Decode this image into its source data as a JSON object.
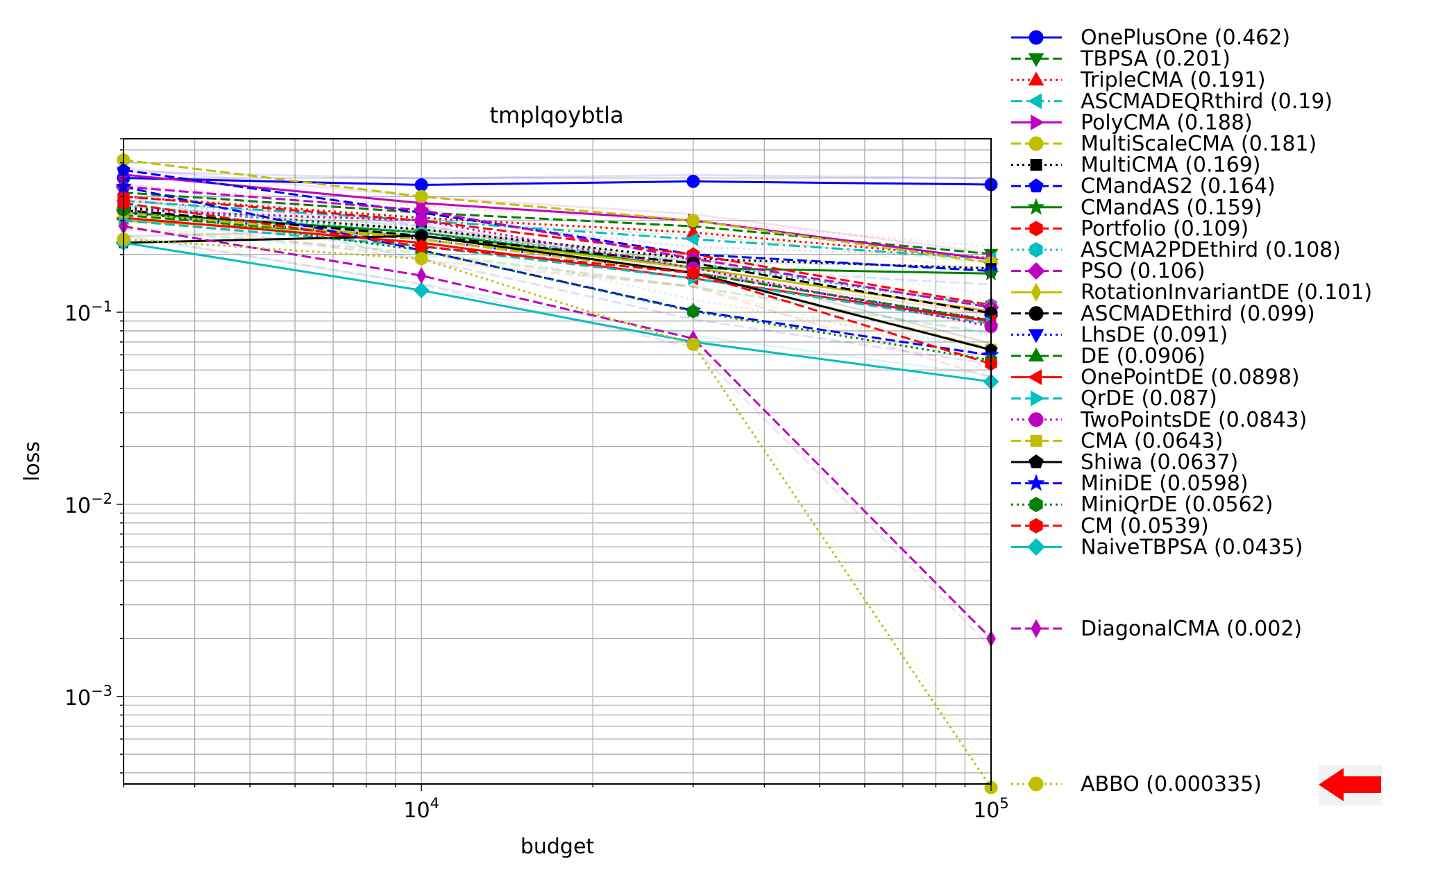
{
  "chart_data": {
    "type": "line",
    "title": "tmplqoybtla",
    "xlabel": "budget",
    "ylabel": "loss",
    "xscale": "log",
    "yscale": "log",
    "xlim": [
      3000,
      100000
    ],
    "ylim": [
      0.00035,
      0.8
    ],
    "x_ticks": [
      {
        "value": 10000,
        "base": "10",
        "exp": "4"
      },
      {
        "value": 100000,
        "base": "10",
        "exp": "5"
      }
    ],
    "y_ticks": [
      {
        "value": 0.1,
        "base": "10",
        "exp": "−1"
      },
      {
        "value": 0.01,
        "base": "10",
        "exp": "−2"
      },
      {
        "value": 0.001,
        "base": "10",
        "exp": "−3"
      }
    ],
    "grid": true,
    "legend_position": "right, outside plot",
    "x": [
      3000,
      10000,
      30000,
      100000
    ],
    "series": [
      {
        "name": "OnePlusOne (0.462)",
        "color": "#0000ff",
        "dash": "solid",
        "marker": "circle",
        "values": [
          0.5,
          0.46,
          0.48,
          0.462
        ]
      },
      {
        "name": "TBPSA (0.201)",
        "color": "#008000",
        "dash": "dashed",
        "marker": "triangle-down",
        "values": [
          0.42,
          0.33,
          0.28,
          0.201
        ]
      },
      {
        "name": "TripleCMA (0.191)",
        "color": "#ff0000",
        "dash": "dotted",
        "marker": "triangle-up",
        "values": [
          0.4,
          0.31,
          0.26,
          0.191
        ]
      },
      {
        "name": "ASCMADEQRthird (0.19)",
        "color": "#00bfbf",
        "dash": "dashdot",
        "marker": "triangle-left",
        "values": [
          0.38,
          0.3,
          0.24,
          0.19
        ]
      },
      {
        "name": "PolyCMA (0.188)",
        "color": "#bf00bf",
        "dash": "solid",
        "marker": "triangle-right",
        "values": [
          0.52,
          0.37,
          0.3,
          0.188
        ]
      },
      {
        "name": "MultiScaleCMA (0.181)",
        "color": "#bfbf00",
        "dash": "dashed",
        "marker": "circle",
        "values": [
          0.62,
          0.4,
          0.3,
          0.181
        ]
      },
      {
        "name": "MultiCMA (0.169)",
        "color": "#000000",
        "dash": "dotted",
        "marker": "square",
        "values": [
          0.35,
          0.27,
          0.19,
          0.169
        ]
      },
      {
        "name": "CMandAS2 (0.164)",
        "color": "#0000ff",
        "dash": "dashed",
        "marker": "pentagon",
        "values": [
          0.55,
          0.33,
          0.2,
          0.164
        ]
      },
      {
        "name": "CMandAS (0.159)",
        "color": "#008000",
        "dash": "solid",
        "marker": "star",
        "values": [
          0.33,
          0.26,
          0.17,
          0.159
        ]
      },
      {
        "name": "Portfolio (0.109)",
        "color": "#ff0000",
        "dash": "dashed",
        "marker": "hexagon",
        "values": [
          0.4,
          0.3,
          0.2,
          0.109
        ]
      },
      {
        "name": "ASCMA2PDEthird (0.108)",
        "color": "#00bfbf",
        "dash": "dotted",
        "marker": "hexagon",
        "values": [
          0.36,
          0.26,
          0.18,
          0.108
        ]
      },
      {
        "name": "PSO (0.106)",
        "color": "#bf00bf",
        "dash": "dashed",
        "marker": "diamond",
        "values": [
          0.45,
          0.34,
          0.19,
          0.106
        ]
      },
      {
        "name": "RotationInvariantDE (0.101)",
        "color": "#bfbf00",
        "dash": "solid",
        "marker": "thin-diamond",
        "values": [
          0.3,
          0.25,
          0.17,
          0.101
        ]
      },
      {
        "name": "ASCMADEthird (0.099)",
        "color": "#000000",
        "dash": "dashed",
        "marker": "circle",
        "values": [
          0.34,
          0.25,
          0.18,
          0.099
        ]
      },
      {
        "name": "LhsDE (0.091)",
        "color": "#0000ff",
        "dash": "dotted",
        "marker": "triangle-down",
        "values": [
          0.33,
          0.24,
          0.16,
          0.091
        ]
      },
      {
        "name": "DE (0.0906)",
        "color": "#008000",
        "dash": "dashed",
        "marker": "triangle-up",
        "values": [
          0.32,
          0.24,
          0.16,
          0.0906
        ]
      },
      {
        "name": "OnePointDE (0.0898)",
        "color": "#ff0000",
        "dash": "solid",
        "marker": "triangle-left",
        "values": [
          0.31,
          0.23,
          0.15,
          0.0898
        ]
      },
      {
        "name": "QrDE (0.087)",
        "color": "#00bfbf",
        "dash": "dashed",
        "marker": "triangle-right",
        "values": [
          0.3,
          0.22,
          0.15,
          0.087
        ]
      },
      {
        "name": "TwoPointsDE (0.0843)",
        "color": "#bf00bf",
        "dash": "dotted",
        "marker": "circle",
        "values": [
          0.34,
          0.3,
          0.17,
          0.0843
        ]
      },
      {
        "name": "CMA (0.0643)",
        "color": "#bfbf00",
        "dash": "dashed",
        "marker": "square",
        "values": [
          0.33,
          0.24,
          0.16,
          0.0643
        ]
      },
      {
        "name": "Shiwa (0.0637)",
        "color": "#000000",
        "dash": "solid",
        "marker": "pentagon",
        "values": [
          0.23,
          0.25,
          0.16,
          0.0637
        ]
      },
      {
        "name": "MiniDE (0.0598)",
        "color": "#0000ff",
        "dash": "dashed",
        "marker": "star",
        "values": [
          0.45,
          0.21,
          0.102,
          0.0598
        ]
      },
      {
        "name": "MiniQrDE (0.0562)",
        "color": "#008000",
        "dash": "dotted",
        "marker": "hexagon",
        "values": [
          0.34,
          0.21,
          0.101,
          0.0562
        ]
      },
      {
        "name": "CM (0.0539)",
        "color": "#ff0000",
        "dash": "dashed",
        "marker": "hexagon",
        "values": [
          0.37,
          0.22,
          0.16,
          0.0539
        ]
      },
      {
        "name": "NaiveTBPSA (0.0435)",
        "color": "#00bfbf",
        "dash": "solid",
        "marker": "diamond",
        "values": [
          0.23,
          0.13,
          0.07,
          0.0435
        ]
      },
      {
        "name": "DiagonalCMA (0.002)",
        "color": "#bf00bf",
        "dash": "dashed",
        "marker": "thin-diamond",
        "values": [
          0.28,
          0.155,
          0.073,
          0.002
        ]
      },
      {
        "name": "ABBO (0.000335)",
        "color": "#bfbf00",
        "dash": "dotted",
        "marker": "circle",
        "values": [
          0.24,
          0.19,
          0.068,
          0.000335
        ]
      }
    ],
    "highlight": "ABBO (0.000335)"
  },
  "colors": {
    "grid": "#b0b0b0",
    "arrow": "#ff0000",
    "arrow_bg": "#f2f2f2"
  }
}
